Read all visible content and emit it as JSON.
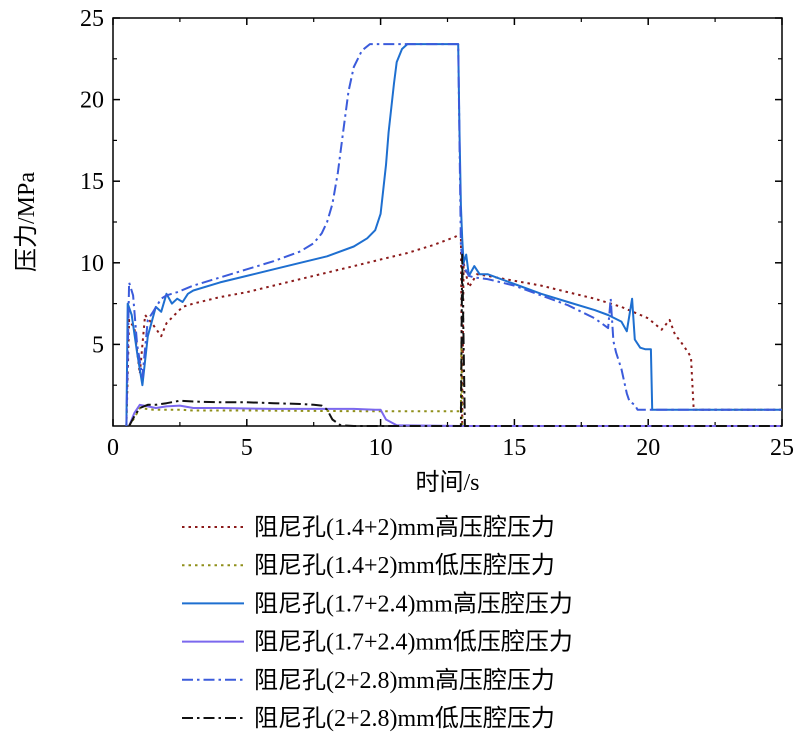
{
  "chart_data": {
    "type": "line",
    "xlabel": "时间/s",
    "ylabel": "压力/MPa",
    "xlim": [
      0,
      25
    ],
    "ylim": [
      0,
      25
    ],
    "xticks": [
      0,
      5,
      10,
      15,
      20,
      25
    ],
    "yticks": [
      5,
      10,
      15,
      20,
      25
    ],
    "grid": false,
    "legend_placement": "below",
    "series": [
      {
        "name": "阻尼孔(1.4+2)mm高压腔压力",
        "color": "#8b1a1a",
        "style": "dot",
        "x": [
          0.5,
          0.6,
          0.8,
          1.0,
          1.2,
          1.5,
          1.8,
          2.0,
          2.3,
          2.6,
          3.0,
          4.0,
          5.0,
          6.0,
          7.0,
          8.0,
          9.0,
          10.0,
          11.0,
          12.0,
          12.8,
          13.0,
          13.05,
          13.1,
          13.3,
          13.6,
          14.0,
          15.0,
          16.0,
          17.0,
          18.0,
          19.0,
          20.0,
          20.5,
          20.8,
          21.0,
          21.2,
          21.5,
          21.6,
          21.7,
          25.0
        ],
        "y": [
          0,
          6.5,
          6.0,
          3.2,
          6.8,
          6.2,
          5.5,
          6.3,
          6.8,
          7.3,
          7.5,
          7.9,
          8.2,
          8.6,
          9.0,
          9.4,
          9.8,
          10.2,
          10.6,
          11.1,
          11.6,
          11.8,
          0,
          10.0,
          8.5,
          9.3,
          9.2,
          8.9,
          8.6,
          8.2,
          7.8,
          7.3,
          6.6,
          5.9,
          6.5,
          5.6,
          5.2,
          4.5,
          4.2,
          1.0,
          1.0
        ]
      },
      {
        "name": "阻尼孔(1.4+2)mm低压腔压力",
        "color": "#8f8f1a",
        "style": "dot",
        "x": [
          0.6,
          0.8,
          1.0,
          1.5,
          2.0,
          2.5,
          3.0,
          5.0,
          8.0,
          10.0,
          11.0,
          13.0,
          13.02,
          13.05,
          25.0
        ],
        "y": [
          0,
          0.5,
          1.1,
          1.0,
          1.0,
          1.0,
          0.95,
          0.95,
          0.92,
          0.9,
          0.9,
          0.9,
          5.2,
          0,
          0
        ]
      },
      {
        "name": "阻尼孔(1.7+2.4)mm高压腔压力",
        "color": "#1e6fd0",
        "style": "solid",
        "x": [
          0.5,
          0.55,
          0.7,
          0.9,
          1.1,
          1.3,
          1.6,
          1.8,
          2.0,
          2.2,
          2.4,
          2.6,
          2.8,
          3.0,
          4.0,
          5.0,
          6.0,
          7.0,
          8.0,
          9.0,
          9.5,
          9.8,
          10.0,
          10.1,
          10.2,
          10.3,
          10.4,
          10.5,
          10.6,
          10.8,
          11.0,
          11.3,
          11.6,
          12.0,
          12.9,
          12.95,
          13.0,
          13.05,
          13.1,
          13.2,
          13.3,
          13.5,
          13.7,
          14.0,
          15.0,
          16.0,
          17.0,
          18.0,
          18.5,
          19.0,
          19.2,
          19.4,
          19.5,
          19.7,
          19.9,
          20.1,
          20.15,
          25.0
        ],
        "y": [
          0,
          7.5,
          6.8,
          4.5,
          2.5,
          5.5,
          7.3,
          7.0,
          8.1,
          7.5,
          7.8,
          7.6,
          8.1,
          8.3,
          8.8,
          9.2,
          9.6,
          10.0,
          10.4,
          11.0,
          11.5,
          12.0,
          13.0,
          14.5,
          16.0,
          18.0,
          19.5,
          21.0,
          22.3,
          23.1,
          23.4,
          23.4,
          23.4,
          23.4,
          23.4,
          18.0,
          13.5,
          11.5,
          10.0,
          10.5,
          9.2,
          9.8,
          9.3,
          9.3,
          8.7,
          8.1,
          7.6,
          7.1,
          6.8,
          6.4,
          5.8,
          7.8,
          5.3,
          4.8,
          4.7,
          4.7,
          1.0,
          1.0
        ]
      },
      {
        "name": "阻尼孔(1.7+2.4)mm低压腔压力",
        "color": "#7b68ee",
        "style": "solid",
        "x": [
          0.6,
          0.8,
          1.0,
          1.3,
          1.6,
          2.0,
          2.5,
          3.0,
          4.0,
          6.0,
          8.0,
          9.0,
          9.8,
          10.0,
          10.2,
          10.6,
          13.0,
          25.0
        ],
        "y": [
          0,
          0.8,
          1.3,
          1.2,
          1.1,
          1.2,
          1.25,
          1.1,
          1.1,
          1.05,
          1.05,
          1.05,
          1.0,
          1.0,
          0.4,
          0.05,
          0,
          0
        ]
      },
      {
        "name": "阻尼孔(2+2.8)mm高压腔压力",
        "color": "#3b5bdb",
        "style": "dashdot",
        "x": [
          0.5,
          0.6,
          0.75,
          0.9,
          1.1,
          1.3,
          1.5,
          1.8,
          2.0,
          2.4,
          3.0,
          4.0,
          5.0,
          6.0,
          7.0,
          7.5,
          7.8,
          8.0,
          8.2,
          8.4,
          8.6,
          8.8,
          9.0,
          9.3,
          9.6,
          10.0,
          12.9,
          13.0,
          13.1,
          13.3,
          13.5,
          14.0,
          15.0,
          16.0,
          17.0,
          18.0,
          18.5,
          18.6,
          18.7,
          18.8,
          19.0,
          19.2,
          19.3,
          19.5,
          19.6,
          25.0
        ],
        "y": [
          0,
          8.8,
          8.0,
          5.0,
          3.0,
          6.5,
          7.0,
          7.8,
          8.0,
          8.2,
          8.6,
          9.1,
          9.6,
          10.1,
          10.7,
          11.2,
          11.8,
          12.5,
          13.6,
          15.5,
          18.0,
          20.5,
          22.0,
          23.0,
          23.4,
          23.4,
          23.4,
          11.0,
          9.8,
          9.2,
          9.1,
          9.0,
          8.6,
          8.0,
          7.4,
          6.6,
          6.0,
          7.8,
          5.2,
          4.5,
          3.5,
          2.0,
          1.5,
          1.3,
          1.0,
          1.0
        ]
      },
      {
        "name": "阻尼孔(2+2.8)mm低压腔压力",
        "color": "#111111",
        "style": "dashdot",
        "x": [
          0.6,
          0.8,
          1.0,
          1.3,
          1.6,
          2.0,
          2.5,
          3.0,
          4.0,
          5.0,
          6.0,
          7.0,
          7.5,
          7.8,
          8.0,
          8.2,
          8.5,
          9.0,
          13.0,
          13.05,
          13.15,
          13.2,
          25.0
        ],
        "y": [
          0,
          0.6,
          1.1,
          1.3,
          1.3,
          1.4,
          1.55,
          1.5,
          1.45,
          1.45,
          1.4,
          1.35,
          1.3,
          1.25,
          1.0,
          0.4,
          0.05,
          0,
          0,
          10.5,
          0,
          0,
          0
        ]
      }
    ]
  }
}
